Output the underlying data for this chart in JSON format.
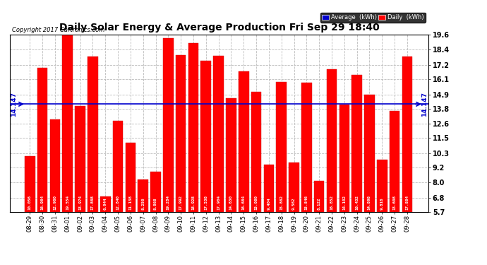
{
  "title": "Daily Solar Energy & Average Production Fri Sep 29 18:40",
  "copyright": "Copyright 2017 Cartronics.com",
  "average": 14.147,
  "categories": [
    "08-29",
    "08-30",
    "08-31",
    "09-01",
    "09-02",
    "09-03",
    "09-04",
    "09-05",
    "09-06",
    "09-07",
    "09-08",
    "09-09",
    "09-10",
    "09-11",
    "09-12",
    "09-13",
    "09-14",
    "09-15",
    "09-16",
    "09-17",
    "09-18",
    "09-19",
    "09-20",
    "09-21",
    "09-22",
    "09-23",
    "09-24",
    "09-25",
    "09-26",
    "09-27",
    "09-28"
  ],
  "values": [
    10.056,
    16.984,
    12.96,
    19.554,
    13.974,
    17.868,
    6.944,
    12.84,
    11.138,
    8.25,
    8.868,
    19.284,
    17.992,
    18.928,
    17.538,
    17.904,
    14.63,
    16.684,
    15.08,
    9.404,
    15.862,
    9.562,
    15.846,
    8.122,
    16.852,
    14.102,
    16.432,
    14.898,
    9.816,
    13.608,
    17.884
  ],
  "bar_color": "#FF0000",
  "avg_line_color": "#0000CD",
  "background_color": "#FFFFFF",
  "plot_bg_color": "#FFFFFF",
  "grid_color": "#BBBBBB",
  "ylim_min": 5.7,
  "ylim_max": 19.6,
  "yticks": [
    5.7,
    6.8,
    8.0,
    9.2,
    10.3,
    11.5,
    12.6,
    13.8,
    14.9,
    16.1,
    17.2,
    18.4,
    19.6
  ],
  "avg_label": "14.147",
  "legend_avg_color": "#0000CD",
  "legend_daily_color": "#FF0000",
  "legend_avg_text": "Average  (kWh)",
  "legend_daily_text": "Daily  (kWh)"
}
